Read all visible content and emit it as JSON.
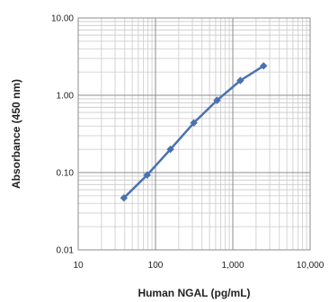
{
  "chart_data": {
    "type": "line",
    "title": "",
    "xlabel": "Human NGAL (pg/mL)",
    "ylabel": "Absorbance (450 nm)",
    "xscale": "log",
    "yscale": "log",
    "xlim": [
      10,
      10000
    ],
    "ylim": [
      0.01,
      10
    ],
    "grid": true,
    "legend": "none",
    "x_ticks": [
      "10",
      "100",
      "1,000",
      "10,000"
    ],
    "y_ticks": [
      "10.00",
      "1.00",
      "0.10",
      "0.01"
    ],
    "series": [
      {
        "color": "#4a72b0",
        "marker": "diamond",
        "points": [
          {
            "x": 39,
            "y": 0.047
          },
          {
            "x": 78,
            "y": 0.093
          },
          {
            "x": 156,
            "y": 0.2
          },
          {
            "x": 313,
            "y": 0.44
          },
          {
            "x": 625,
            "y": 0.86
          },
          {
            "x": 1250,
            "y": 1.55
          },
          {
            "x": 2500,
            "y": 2.4
          }
        ]
      }
    ]
  }
}
